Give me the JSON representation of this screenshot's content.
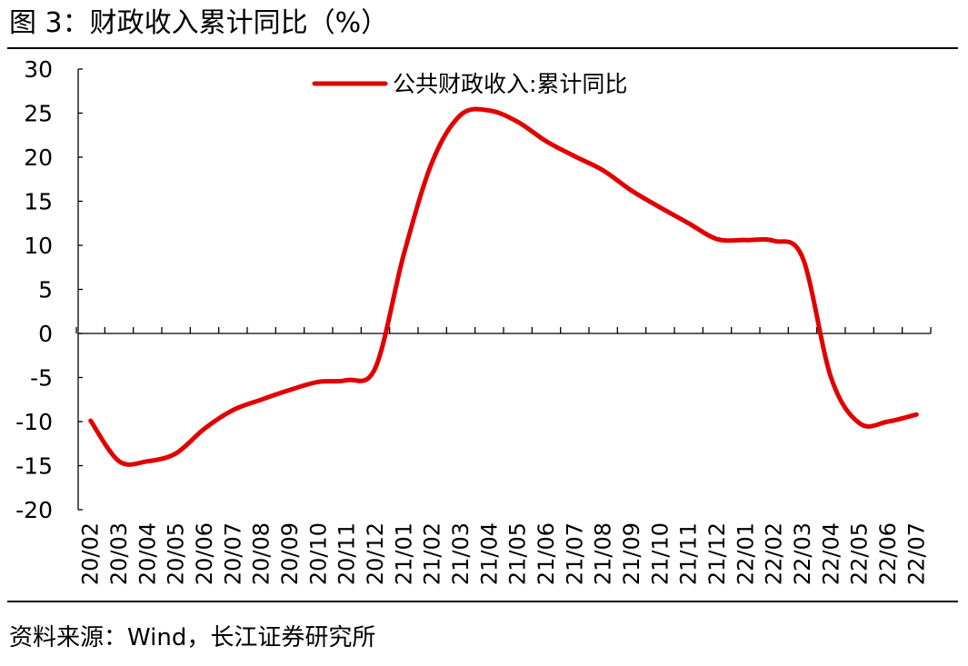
{
  "figure": {
    "title": "图 3：财政收入累计同比（%）",
    "source": "资料来源：Wind，长江证券研究所"
  },
  "chart_data": {
    "type": "line",
    "title": "",
    "xlabel": "",
    "ylabel": "",
    "ylim": [
      -20,
      30
    ],
    "yticks": [
      30,
      25,
      20,
      15,
      10,
      5,
      0,
      -5,
      -10,
      -15,
      -20
    ],
    "legend_position": "top-center",
    "grid": false,
    "categories": [
      "20/02",
      "20/03",
      "20/04",
      "20/05",
      "20/06",
      "20/07",
      "20/08",
      "20/09",
      "20/10",
      "20/11",
      "20/12",
      "21/01",
      "21/02",
      "21/03",
      "21/04",
      "21/05",
      "21/06",
      "21/07",
      "21/08",
      "21/09",
      "21/10",
      "21/11",
      "21/12",
      "22/01",
      "22/02",
      "22/03",
      "22/04",
      "22/05",
      "22/06",
      "22/07"
    ],
    "series": [
      {
        "name": "公共财政收入:累计同比",
        "color": "#e00000",
        "values": [
          -9.9,
          -14.5,
          -14.5,
          -13.6,
          -10.8,
          -8.7,
          -7.5,
          -6.4,
          -5.5,
          -5.3,
          -3.9,
          9.0,
          19.5,
          24.8,
          25.3,
          24.0,
          21.8,
          20.1,
          18.5,
          16.2,
          14.3,
          12.5,
          10.7,
          10.6,
          10.5,
          8.6,
          -5.0,
          -10.2,
          -10.0,
          -9.2
        ]
      }
    ]
  }
}
